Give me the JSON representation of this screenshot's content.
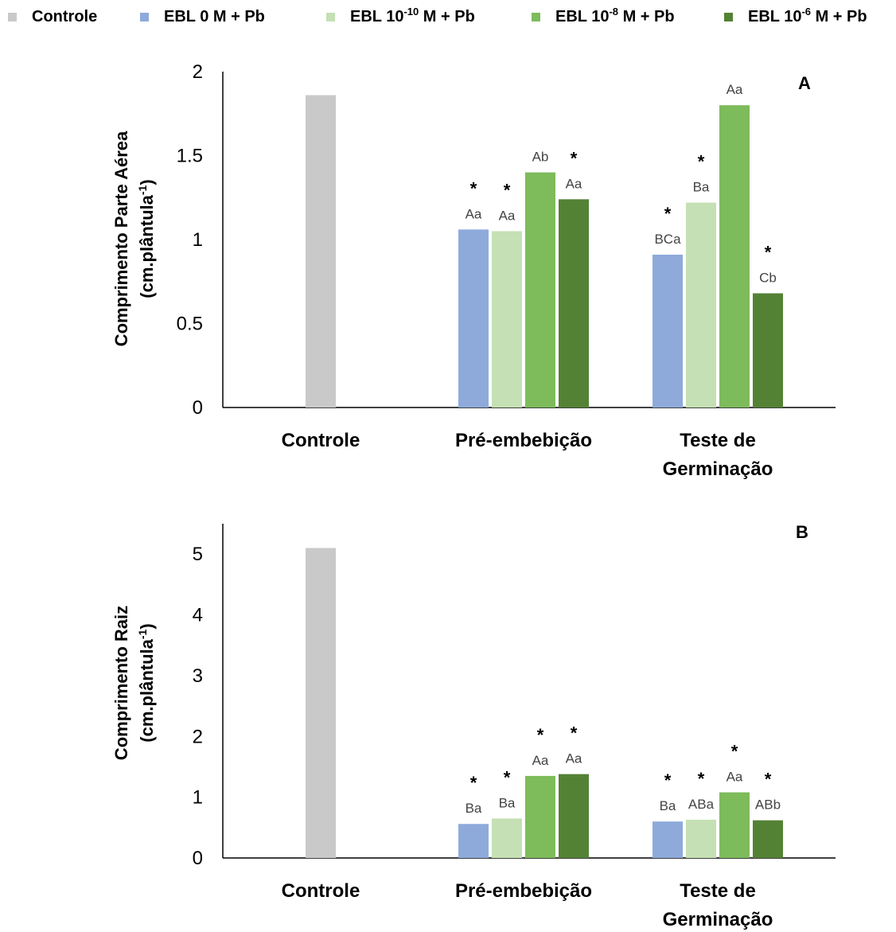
{
  "legend": [
    {
      "label": "Controle",
      "sup": "",
      "suffix": "",
      "color": "#c9c9c9"
    },
    {
      "label": "EBL 0 M + Pb",
      "sup": "",
      "suffix": "",
      "color": "#8eaadb"
    },
    {
      "label": "EBL 10",
      "sup": "-10",
      "suffix": " M + Pb",
      "color": "#c5e0b4"
    },
    {
      "label": "EBL 10",
      "sup": "-8",
      "suffix": " M + Pb",
      "color": "#7dbb5b"
    },
    {
      "label": "EBL 10",
      "sup": "-6",
      "suffix": " M + Pb",
      "color": "#548235"
    }
  ],
  "chart_data": [
    {
      "type": "bar",
      "panel_label": "A",
      "ylabel_line1": "Comprimento Parte Aérea",
      "ylabel_line2_main": "(cm.plântula",
      "ylabel_line2_sup": "-1",
      "ylabel_line2_end": ")",
      "ylim": [
        0,
        2
      ],
      "yticks": [
        "0",
        "0.5",
        "1",
        "1.5",
        "2"
      ],
      "ytick_values": [
        0,
        0.5,
        1,
        1.5,
        2
      ],
      "categories": [
        "Controle",
        "Pré-embebição",
        "Teste de Germinação"
      ],
      "category_lines": [
        [
          "Controle"
        ],
        [
          "Pré-embebição"
        ],
        [
          "Teste de",
          "Germinação"
        ]
      ],
      "series": [
        {
          "name": "Controle",
          "values": [
            1.86,
            null,
            null
          ],
          "labels": [
            "",
            "",
            ""
          ],
          "stars": [
            false,
            false,
            false
          ]
        },
        {
          "name": "EBL 0 M + Pb",
          "values": [
            null,
            1.06,
            0.91
          ],
          "labels": [
            "",
            "Aa",
            "BCa"
          ],
          "stars": [
            false,
            true,
            true
          ]
        },
        {
          "name": "EBL 10-10 M + Pb",
          "values": [
            null,
            1.05,
            1.22
          ],
          "labels": [
            "",
            "Aa",
            "Ba"
          ],
          "stars": [
            false,
            true,
            true
          ]
        },
        {
          "name": "EBL 10-8 M + Pb",
          "values": [
            null,
            1.4,
            1.8
          ],
          "labels": [
            "",
            "Ab",
            "Aa"
          ],
          "stars": [
            false,
            false,
            false
          ]
        },
        {
          "name": "EBL 10-6 M + Pb",
          "values": [
            null,
            1.24,
            0.68
          ],
          "labels": [
            "",
            "Aa",
            "Cb"
          ],
          "stars": [
            false,
            true,
            true
          ]
        }
      ]
    },
    {
      "type": "bar",
      "panel_label": "B",
      "ylabel_line1": "Comprimento Raiz",
      "ylabel_line2_main": "(cm.plântula",
      "ylabel_line2_sup": "-1",
      "ylabel_line2_end": ")",
      "ylim": [
        0,
        5.5
      ],
      "yticks": [
        "0",
        "1",
        "2",
        "3",
        "4",
        "5"
      ],
      "ytick_values": [
        0,
        1,
        2,
        3,
        4,
        5
      ],
      "categories": [
        "Controle",
        "Pré-embebição",
        "Teste de Germinação"
      ],
      "category_lines": [
        [
          "Controle"
        ],
        [
          "Pré-embebição"
        ],
        [
          "Teste de",
          "Germinação"
        ]
      ],
      "series": [
        {
          "name": "Controle",
          "values": [
            5.1,
            null,
            null
          ],
          "labels": [
            "",
            "",
            ""
          ],
          "stars": [
            false,
            false,
            false
          ]
        },
        {
          "name": "EBL 0 M + Pb",
          "values": [
            null,
            0.56,
            0.6
          ],
          "labels": [
            "",
            "Ba",
            "Ba"
          ],
          "stars": [
            false,
            true,
            true
          ]
        },
        {
          "name": "EBL 10-10 M + Pb",
          "values": [
            null,
            0.65,
            0.63
          ],
          "labels": [
            "",
            "Ba",
            "ABa"
          ],
          "stars": [
            false,
            true,
            true
          ]
        },
        {
          "name": "EBL 10-8 M + Pb",
          "values": [
            null,
            1.35,
            1.08
          ],
          "labels": [
            "",
            "Aa",
            "Aa"
          ],
          "stars": [
            false,
            true,
            true
          ]
        },
        {
          "name": "EBL 10-6 M + Pb",
          "values": [
            null,
            1.38,
            0.62
          ],
          "labels": [
            "",
            "Aa",
            "ABb"
          ],
          "stars": [
            false,
            true,
            true
          ]
        }
      ]
    }
  ]
}
